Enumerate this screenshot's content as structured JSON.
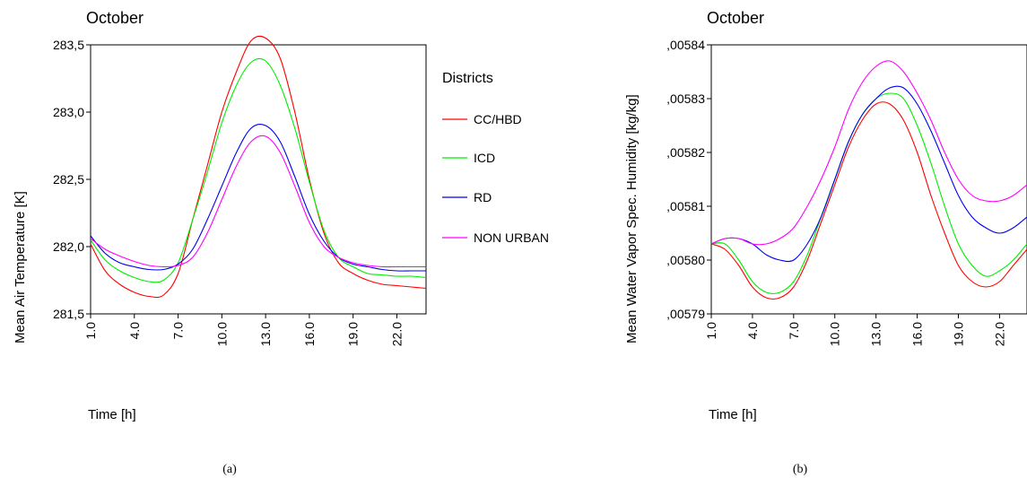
{
  "chart_data": [
    {
      "type": "line",
      "title": "October",
      "xlabel": "Time [h]",
      "ylabel": "Mean  Air Temperature [K]",
      "caption": "(a)",
      "xlim": [
        1.0,
        24.0
      ],
      "ylim": [
        281.5,
        283.5
      ],
      "x_ticks": [
        "1.0",
        "4.0",
        "7.0",
        "10.0",
        "13.0",
        "16.0",
        "19.0",
        "22.0"
      ],
      "y_ticks": [
        "283,5",
        "283,0",
        "282,5",
        "282,0",
        "281,5"
      ],
      "y_tick_values": [
        283.5,
        283.0,
        282.5,
        282.0,
        281.5
      ],
      "legend": {
        "title": "Districts",
        "placement": "right"
      },
      "x": [
        1,
        2,
        3,
        4,
        5,
        6,
        7,
        8,
        9,
        10,
        11,
        12,
        13,
        14,
        15,
        16,
        17,
        18,
        19,
        20,
        21,
        22,
        23,
        24
      ],
      "series": [
        {
          "name": "CC/HBD",
          "color": "#ff0000",
          "values": [
            282.02,
            281.82,
            281.72,
            281.66,
            281.63,
            281.64,
            281.8,
            282.2,
            282.6,
            283.0,
            283.3,
            283.53,
            283.55,
            283.4,
            283.0,
            282.5,
            282.1,
            281.88,
            281.8,
            281.75,
            281.72,
            281.71,
            281.7,
            281.69
          ]
        },
        {
          "name": "ICD",
          "color": "#00ee00",
          "values": [
            282.05,
            281.9,
            281.82,
            281.77,
            281.74,
            281.75,
            281.88,
            282.2,
            282.55,
            282.92,
            283.2,
            283.37,
            283.38,
            283.2,
            282.88,
            282.48,
            282.12,
            281.92,
            281.85,
            281.8,
            281.79,
            281.78,
            281.78,
            281.77
          ]
        },
        {
          "name": "RD",
          "color": "#0000ee",
          "values": [
            282.08,
            281.95,
            281.88,
            281.85,
            281.83,
            281.83,
            281.87,
            281.98,
            282.2,
            282.45,
            282.7,
            282.88,
            282.9,
            282.78,
            282.52,
            282.24,
            282.04,
            281.92,
            281.87,
            281.85,
            281.83,
            281.82,
            281.82,
            281.82
          ]
        },
        {
          "name": "NON URBAN",
          "color": "#ff00ff",
          "values": [
            282.06,
            281.98,
            281.93,
            281.89,
            281.86,
            281.85,
            281.86,
            281.92,
            282.1,
            282.35,
            282.6,
            282.78,
            282.82,
            282.7,
            282.45,
            282.18,
            282.0,
            281.92,
            281.88,
            281.86,
            281.85,
            281.85,
            281.85,
            281.85
          ]
        }
      ]
    },
    {
      "type": "line",
      "title": "October",
      "xlabel": "Time [h]",
      "ylabel": "Mean  Water Vapor Spec. Humidity [kg/kg]",
      "caption": "(b)",
      "xlim": [
        1.0,
        24.0
      ],
      "ylim": [
        0.00579,
        0.00584
      ],
      "x_ticks": [
        "1.0",
        "4.0",
        "7.0",
        "10.0",
        "13.0",
        "16.0",
        "19.0",
        "22.0"
      ],
      "y_ticks": [
        ",00584",
        ",00583",
        ",00582",
        ",00581",
        ",00580",
        ",00579"
      ],
      "y_tick_values": [
        0.00584,
        0.00583,
        0.00582,
        0.00581,
        0.0058,
        0.00579
      ],
      "x": [
        1,
        2,
        3,
        4,
        5,
        6,
        7,
        8,
        9,
        10,
        11,
        12,
        13,
        14,
        15,
        16,
        17,
        18,
        19,
        20,
        21,
        22,
        23,
        24
      ],
      "series": [
        {
          "name": "CC/HBD",
          "color": "#ff0000",
          "values": [
            0.005803,
            0.005802,
            0.005799,
            0.005795,
            0.005793,
            0.005793,
            0.005795,
            0.0058,
            0.005807,
            0.005814,
            0.005821,
            0.005826,
            0.005829,
            0.005829,
            0.005826,
            0.00582,
            0.005812,
            0.005805,
            0.005799,
            0.005796,
            0.005795,
            0.005796,
            0.005799,
            0.005802
          ]
        },
        {
          "name": "ICD",
          "color": "#00ee00",
          "values": [
            0.005803,
            0.005803,
            0.0058,
            0.005796,
            0.005794,
            0.005794,
            0.005796,
            0.005801,
            0.005808,
            0.005815,
            0.005822,
            0.005827,
            0.00583,
            0.005831,
            0.00583,
            0.005825,
            0.005818,
            0.00581,
            0.005803,
            0.005799,
            0.005797,
            0.005798,
            0.0058,
            0.005803
          ]
        },
        {
          "name": "RD",
          "color": "#0000ee",
          "values": [
            0.005803,
            0.005804,
            0.005804,
            0.005803,
            0.005801,
            0.0058,
            0.0058,
            0.005803,
            0.005808,
            0.005815,
            0.005822,
            0.005827,
            0.00583,
            0.005832,
            0.005832,
            0.005829,
            0.005824,
            0.005818,
            0.005812,
            0.005808,
            0.005806,
            0.005805,
            0.005806,
            0.005808
          ]
        },
        {
          "name": "NON URBAN",
          "color": "#ff00ff",
          "values": [
            0.005803,
            0.005804,
            0.005804,
            0.005803,
            0.005803,
            0.005804,
            0.005806,
            0.00581,
            0.005815,
            0.005821,
            0.005828,
            0.005833,
            0.005836,
            0.005837,
            0.005835,
            0.005831,
            0.005826,
            0.00582,
            0.005815,
            0.005812,
            0.005811,
            0.005811,
            0.005812,
            0.005814
          ]
        }
      ]
    }
  ]
}
